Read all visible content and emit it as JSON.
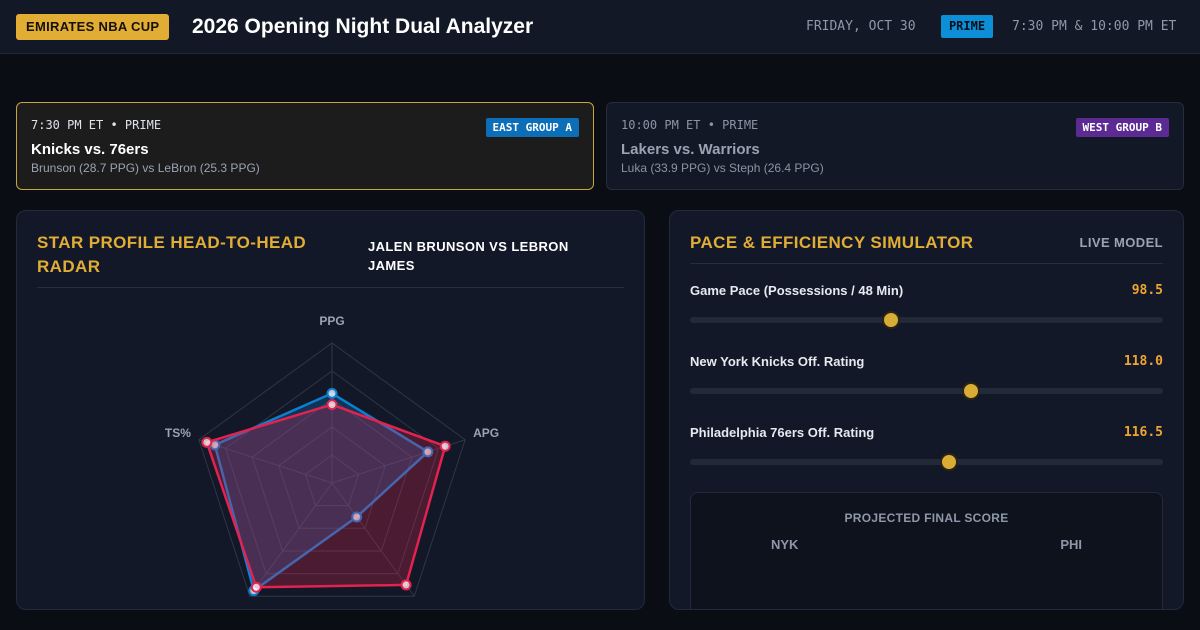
{
  "header": {
    "cup_badge": "EMIRATES NBA CUP",
    "title": "2026 Opening Night Dual Analyzer",
    "date": "FRIDAY, OCT 30",
    "network": "PRIME",
    "times": "7:30 PM & 10:00 PM ET"
  },
  "games": [
    {
      "time": "7:30 PM ET • PRIME",
      "group": "EAST GROUP A",
      "title": "Knicks vs. 76ers",
      "subtitle": "Brunson (28.7 PPG) vs LeBron (25.3 PPG)",
      "active": true
    },
    {
      "time": "10:00 PM ET • PRIME",
      "group": "WEST GROUP B",
      "title": "Lakers vs. Warriors",
      "subtitle": "Luka (33.9 PPG) vs Steph (26.4 PPG)",
      "active": false
    }
  ],
  "radar_panel": {
    "title": "STAR PROFILE HEAD-TO-HEAD RADAR",
    "matchup": "JALEN BRUNSON VS LEBRON JAMES",
    "axes": [
      "PPG",
      "APG",
      "",
      "",
      "TS%"
    ],
    "series": [
      {
        "color": "#0c7fd0",
        "values": [
          0.64,
          0.72,
          0.3,
          0.95,
          0.88
        ]
      },
      {
        "color": "#e0234f",
        "values": [
          0.56,
          0.85,
          0.9,
          0.92,
          0.94
        ]
      }
    ]
  },
  "sim_panel": {
    "title": "PACE & EFFICIENCY SIMULATOR",
    "badge": "LIVE MODEL",
    "sliders": [
      {
        "label": "Game Pace (Possessions / 48 Min)",
        "value": "98.5",
        "fraction": 0.426
      },
      {
        "label": "New York Knicks Off. Rating",
        "value": "118.0",
        "fraction": 0.595
      },
      {
        "label": "Philadelphia 76ers Off. Rating",
        "value": "116.5",
        "fraction": 0.547
      }
    ],
    "projection": {
      "title": "PROJECTED FINAL SCORE",
      "home": "NYK",
      "away": "PHI"
    }
  }
}
